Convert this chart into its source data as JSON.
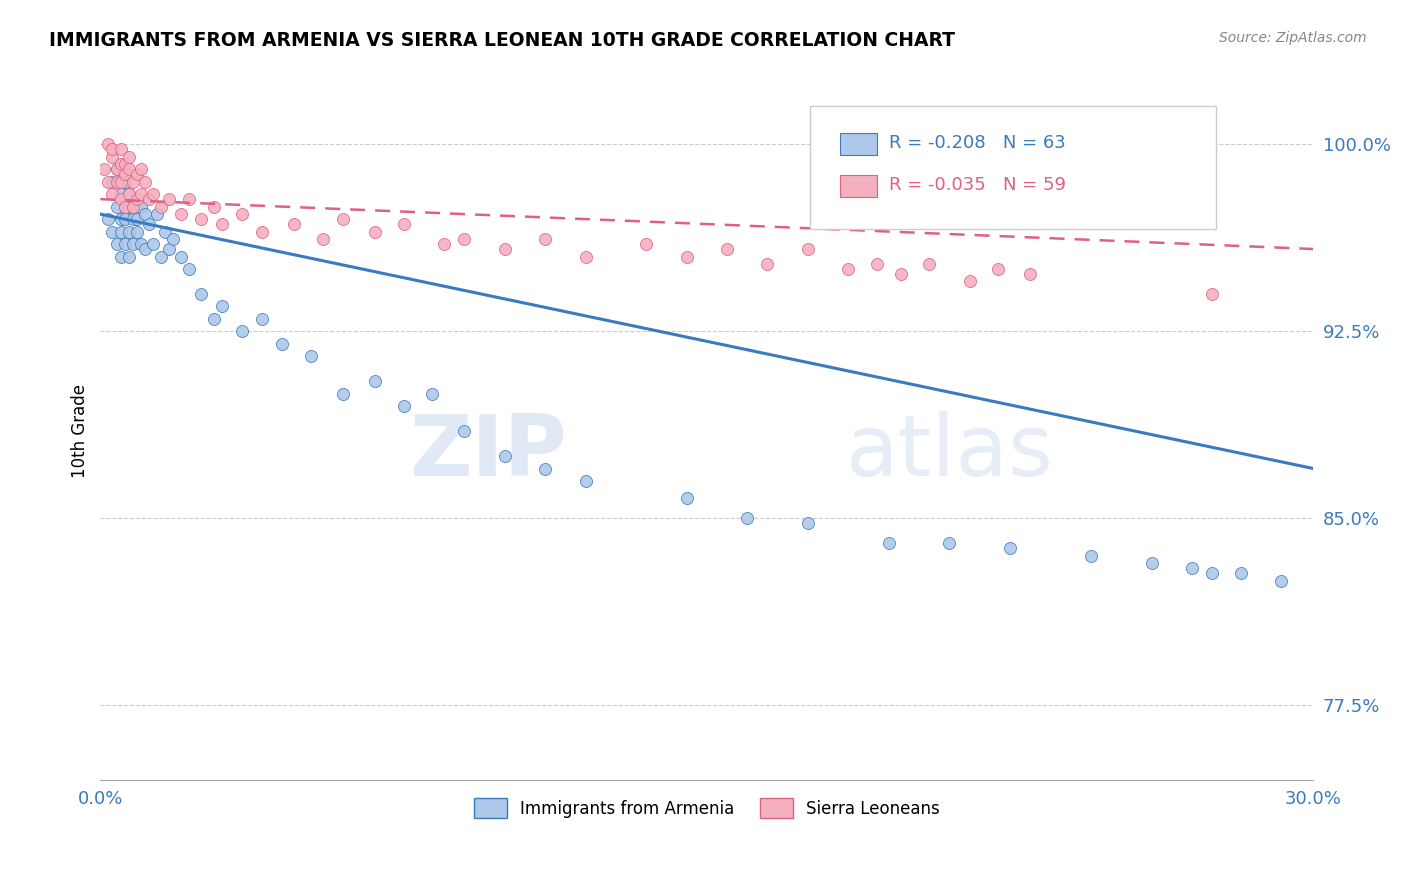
{
  "title": "IMMIGRANTS FROM ARMENIA VS SIERRA LEONEAN 10TH GRADE CORRELATION CHART",
  "source": "Source: ZipAtlas.com",
  "ylabel": "10th Grade",
  "xlim": [
    0.0,
    0.3
  ],
  "ylim": [
    0.745,
    1.025
  ],
  "ytick_vals": [
    0.775,
    0.85,
    0.925,
    1.0
  ],
  "ytick_labels": [
    "77.5%",
    "85.0%",
    "92.5%",
    "100.0%"
  ],
  "legend_r1": "R = -0.208",
  "legend_n1": "N = 63",
  "legend_r2": "R = -0.035",
  "legend_n2": "N = 59",
  "color_armenia": "#adc8e8",
  "color_sierra": "#f5b0c0",
  "color_trend_armenia": "#3a7abf",
  "color_trend_sierra": "#e06080",
  "armenia_scatter_x": [
    0.002,
    0.003,
    0.003,
    0.004,
    0.004,
    0.004,
    0.005,
    0.005,
    0.005,
    0.005,
    0.006,
    0.006,
    0.006,
    0.006,
    0.007,
    0.007,
    0.007,
    0.007,
    0.008,
    0.008,
    0.008,
    0.009,
    0.009,
    0.01,
    0.01,
    0.011,
    0.011,
    0.012,
    0.013,
    0.014,
    0.015,
    0.016,
    0.017,
    0.018,
    0.02,
    0.022,
    0.025,
    0.028,
    0.03,
    0.035,
    0.04,
    0.045,
    0.052,
    0.06,
    0.068,
    0.075,
    0.082,
    0.09,
    0.1,
    0.11,
    0.12,
    0.145,
    0.16,
    0.175,
    0.195,
    0.21,
    0.225,
    0.245,
    0.26,
    0.27,
    0.275,
    0.282,
    0.292
  ],
  "armenia_scatter_y": [
    0.97,
    0.965,
    0.985,
    0.975,
    0.96,
    0.99,
    0.97,
    0.98,
    0.955,
    0.965,
    0.975,
    0.96,
    0.985,
    0.97,
    0.975,
    0.965,
    0.955,
    0.98,
    0.97,
    0.96,
    0.975,
    0.965,
    0.97,
    0.975,
    0.96,
    0.972,
    0.958,
    0.968,
    0.96,
    0.972,
    0.955,
    0.965,
    0.958,
    0.962,
    0.955,
    0.95,
    0.94,
    0.93,
    0.935,
    0.925,
    0.93,
    0.92,
    0.915,
    0.9,
    0.905,
    0.895,
    0.9,
    0.885,
    0.875,
    0.87,
    0.865,
    0.858,
    0.85,
    0.848,
    0.84,
    0.84,
    0.838,
    0.835,
    0.832,
    0.83,
    0.828,
    0.828,
    0.825
  ],
  "sierra_scatter_x": [
    0.001,
    0.002,
    0.002,
    0.003,
    0.003,
    0.003,
    0.004,
    0.004,
    0.005,
    0.005,
    0.005,
    0.005,
    0.006,
    0.006,
    0.006,
    0.007,
    0.007,
    0.007,
    0.008,
    0.008,
    0.009,
    0.009,
    0.01,
    0.01,
    0.011,
    0.012,
    0.013,
    0.015,
    0.017,
    0.02,
    0.022,
    0.025,
    0.028,
    0.03,
    0.035,
    0.04,
    0.048,
    0.055,
    0.06,
    0.068,
    0.075,
    0.085,
    0.09,
    0.1,
    0.11,
    0.12,
    0.135,
    0.145,
    0.155,
    0.165,
    0.175,
    0.185,
    0.192,
    0.198,
    0.205,
    0.215,
    0.222,
    0.23,
    0.275
  ],
  "sierra_scatter_y": [
    0.99,
    1.0,
    0.985,
    0.995,
    0.98,
    0.998,
    0.99,
    0.985,
    0.992,
    0.978,
    0.985,
    0.998,
    0.992,
    0.975,
    0.988,
    0.99,
    0.98,
    0.995,
    0.985,
    0.975,
    0.988,
    0.978,
    0.99,
    0.98,
    0.985,
    0.978,
    0.98,
    0.975,
    0.978,
    0.972,
    0.978,
    0.97,
    0.975,
    0.968,
    0.972,
    0.965,
    0.968,
    0.962,
    0.97,
    0.965,
    0.968,
    0.96,
    0.962,
    0.958,
    0.962,
    0.955,
    0.96,
    0.955,
    0.958,
    0.952,
    0.958,
    0.95,
    0.952,
    0.948,
    0.952,
    0.945,
    0.95,
    0.948,
    0.94
  ],
  "trend_arm_x0": 0.0,
  "trend_arm_x1": 0.3,
  "trend_arm_y0": 0.972,
  "trend_arm_y1": 0.87,
  "trend_sie_x0": 0.0,
  "trend_sie_x1": 0.3,
  "trend_sie_y0": 0.978,
  "trend_sie_y1": 0.958
}
